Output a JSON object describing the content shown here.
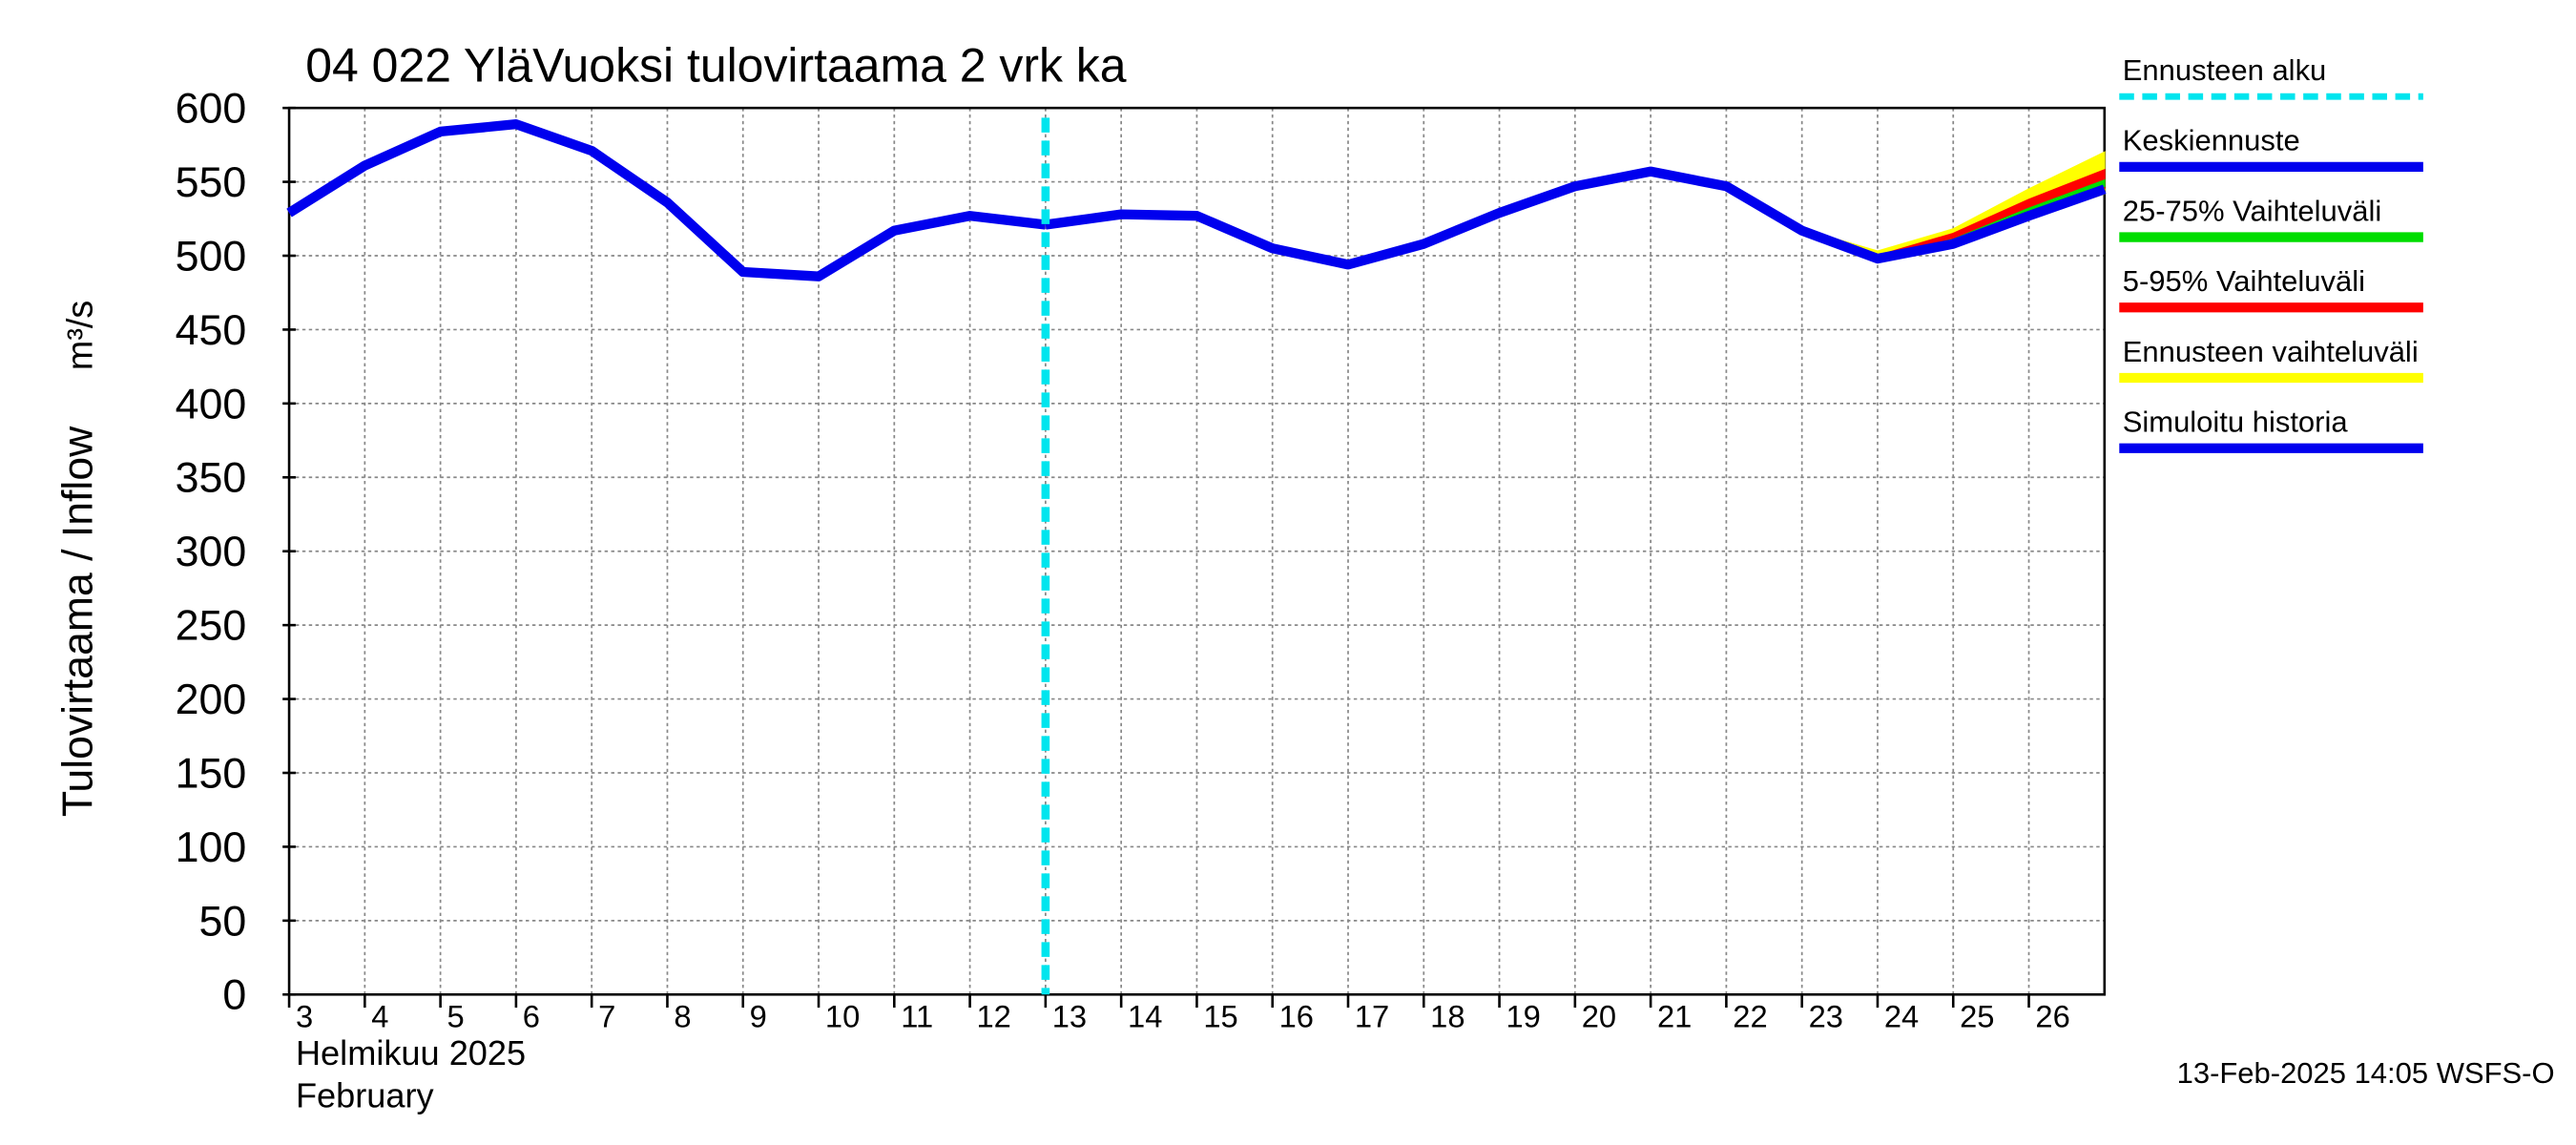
{
  "chart_data": {
    "type": "line",
    "title": "04 022 YläVuoksi tulovirtaama 2 vrk ka",
    "y_label": "Tulovirtaama / Inflow",
    "y_unit": "m³/s",
    "x_label_month": "Helmikuu  2025",
    "x_label_month_en": "February",
    "footer": "13-Feb-2025 14:05 WSFS-O",
    "xlim": [
      3,
      27
    ],
    "xticks": [
      3,
      4,
      5,
      6,
      7,
      8,
      9,
      10,
      11,
      12,
      13,
      14,
      15,
      16,
      17,
      18,
      19,
      20,
      21,
      22,
      23,
      24,
      25,
      26
    ],
    "ylim": [
      0,
      600
    ],
    "yticks": [
      0,
      50,
      100,
      150,
      200,
      250,
      300,
      350,
      400,
      450,
      500,
      550,
      600
    ],
    "grid": true,
    "forecast_start": {
      "name": "Ennusteen alku",
      "color": "#00e5ee",
      "x": 13
    },
    "bands": [
      {
        "name": "Ennusteen vaihteluväli",
        "color": "#ffff00",
        "x": [
          23,
          24,
          25,
          26,
          27
        ],
        "values": [
          518,
          503,
          518,
          545,
          570
        ],
        "lower": [
          517,
          497,
          506,
          525,
          542
        ]
      },
      {
        "name": "5-95% Vaihteluväli",
        "color": "#ff0000",
        "x": [
          23,
          24,
          25,
          26,
          27
        ],
        "values": [
          517,
          500,
          515,
          538,
          558
        ],
        "lower": [
          517,
          498,
          508,
          528,
          546
        ]
      },
      {
        "name": "25-75% Vaihteluväli",
        "color": "#00dd00",
        "x": [
          23,
          24,
          25,
          26,
          27
        ],
        "values": [
          517,
          499,
          511,
          532,
          551
        ],
        "lower": [
          517,
          498,
          509,
          529,
          547
        ]
      }
    ],
    "series": [
      {
        "name": "Simuloitu historia",
        "color": "#0000ee",
        "x": [
          3,
          4,
          5,
          6,
          7,
          8,
          9,
          10,
          11,
          12,
          13
        ],
        "values": [
          529,
          561,
          584,
          589,
          571,
          536,
          489,
          486,
          517,
          527,
          521
        ]
      },
      {
        "name": "Keskiennuste",
        "color": "#0000ee",
        "x": [
          13,
          14,
          15,
          16,
          17,
          18,
          19,
          20,
          21,
          22,
          23,
          24,
          25,
          26,
          27
        ],
        "values": [
          521,
          528,
          527,
          505,
          494,
          508,
          529,
          547,
          557,
          547,
          517,
          498,
          508,
          527,
          545
        ]
      }
    ],
    "legend": [
      "forecast_start",
      "series.1",
      "bands.2",
      "bands.1",
      "bands.0",
      "series.0"
    ]
  }
}
